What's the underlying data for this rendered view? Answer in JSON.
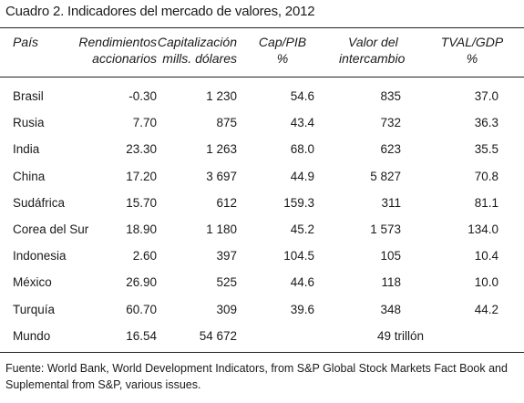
{
  "title": "Cuadro 2. Indicadores del mercado de valores, 2012",
  "headers": {
    "pais": "País",
    "rend_1": "Rendimientos",
    "rend_2": "accionarios",
    "cap_1": "Capitalización",
    "cap_2": "mills. dólares",
    "pib_1": "Cap/PIB",
    "pib_2": "%",
    "val_1": "Valor del",
    "val_2": "intercambio",
    "tval_1": "TVAL/GDP",
    "tval_2": "%"
  },
  "rows": [
    {
      "pais": "Brasil",
      "rend": "-0.30",
      "cap": "1 230",
      "pib": "54.6",
      "val": "835",
      "tval": "37.0"
    },
    {
      "pais": "Rusia",
      "rend": "7.70",
      "cap": "875",
      "pib": "43.4",
      "val": "732",
      "tval": "36.3"
    },
    {
      "pais": "India",
      "rend": "23.30",
      "cap": "1 263",
      "pib": "68.0",
      "val": "623",
      "tval": "35.5"
    },
    {
      "pais": "China",
      "rend": "17.20",
      "cap": "3 697",
      "pib": "44.9",
      "val": "5 827",
      "tval": "70.8"
    },
    {
      "pais": "Sudáfrica",
      "rend": "15.70",
      "cap": "612",
      "pib": "159.3",
      "val": "311",
      "tval": "81.1"
    },
    {
      "pais": "Corea del Sur",
      "rend": "18.90",
      "cap": "1 180",
      "pib": "45.2",
      "val": "1 573",
      "tval": "134.0"
    },
    {
      "pais": "Indonesia",
      "rend": "2.60",
      "cap": "397",
      "pib": "104.5",
      "val": "105",
      "tval": "10.4"
    },
    {
      "pais": "México",
      "rend": "26.90",
      "cap": "525",
      "pib": "44.6",
      "val": "118",
      "tval": "10.0"
    },
    {
      "pais": "Turquía",
      "rend": "60.70",
      "cap": "309",
      "pib": "39.6",
      "val": "348",
      "tval": "44.2"
    },
    {
      "pais": "Mundo",
      "rend": "16.54",
      "cap": "54 672",
      "pib": "",
      "val": "49 trillón",
      "tval": ""
    }
  ],
  "footnote": "Fuente: World Bank, World Development Indicators, from S&P Global Stock Markets Fact Book and Suplemental from S&P, various issues."
}
